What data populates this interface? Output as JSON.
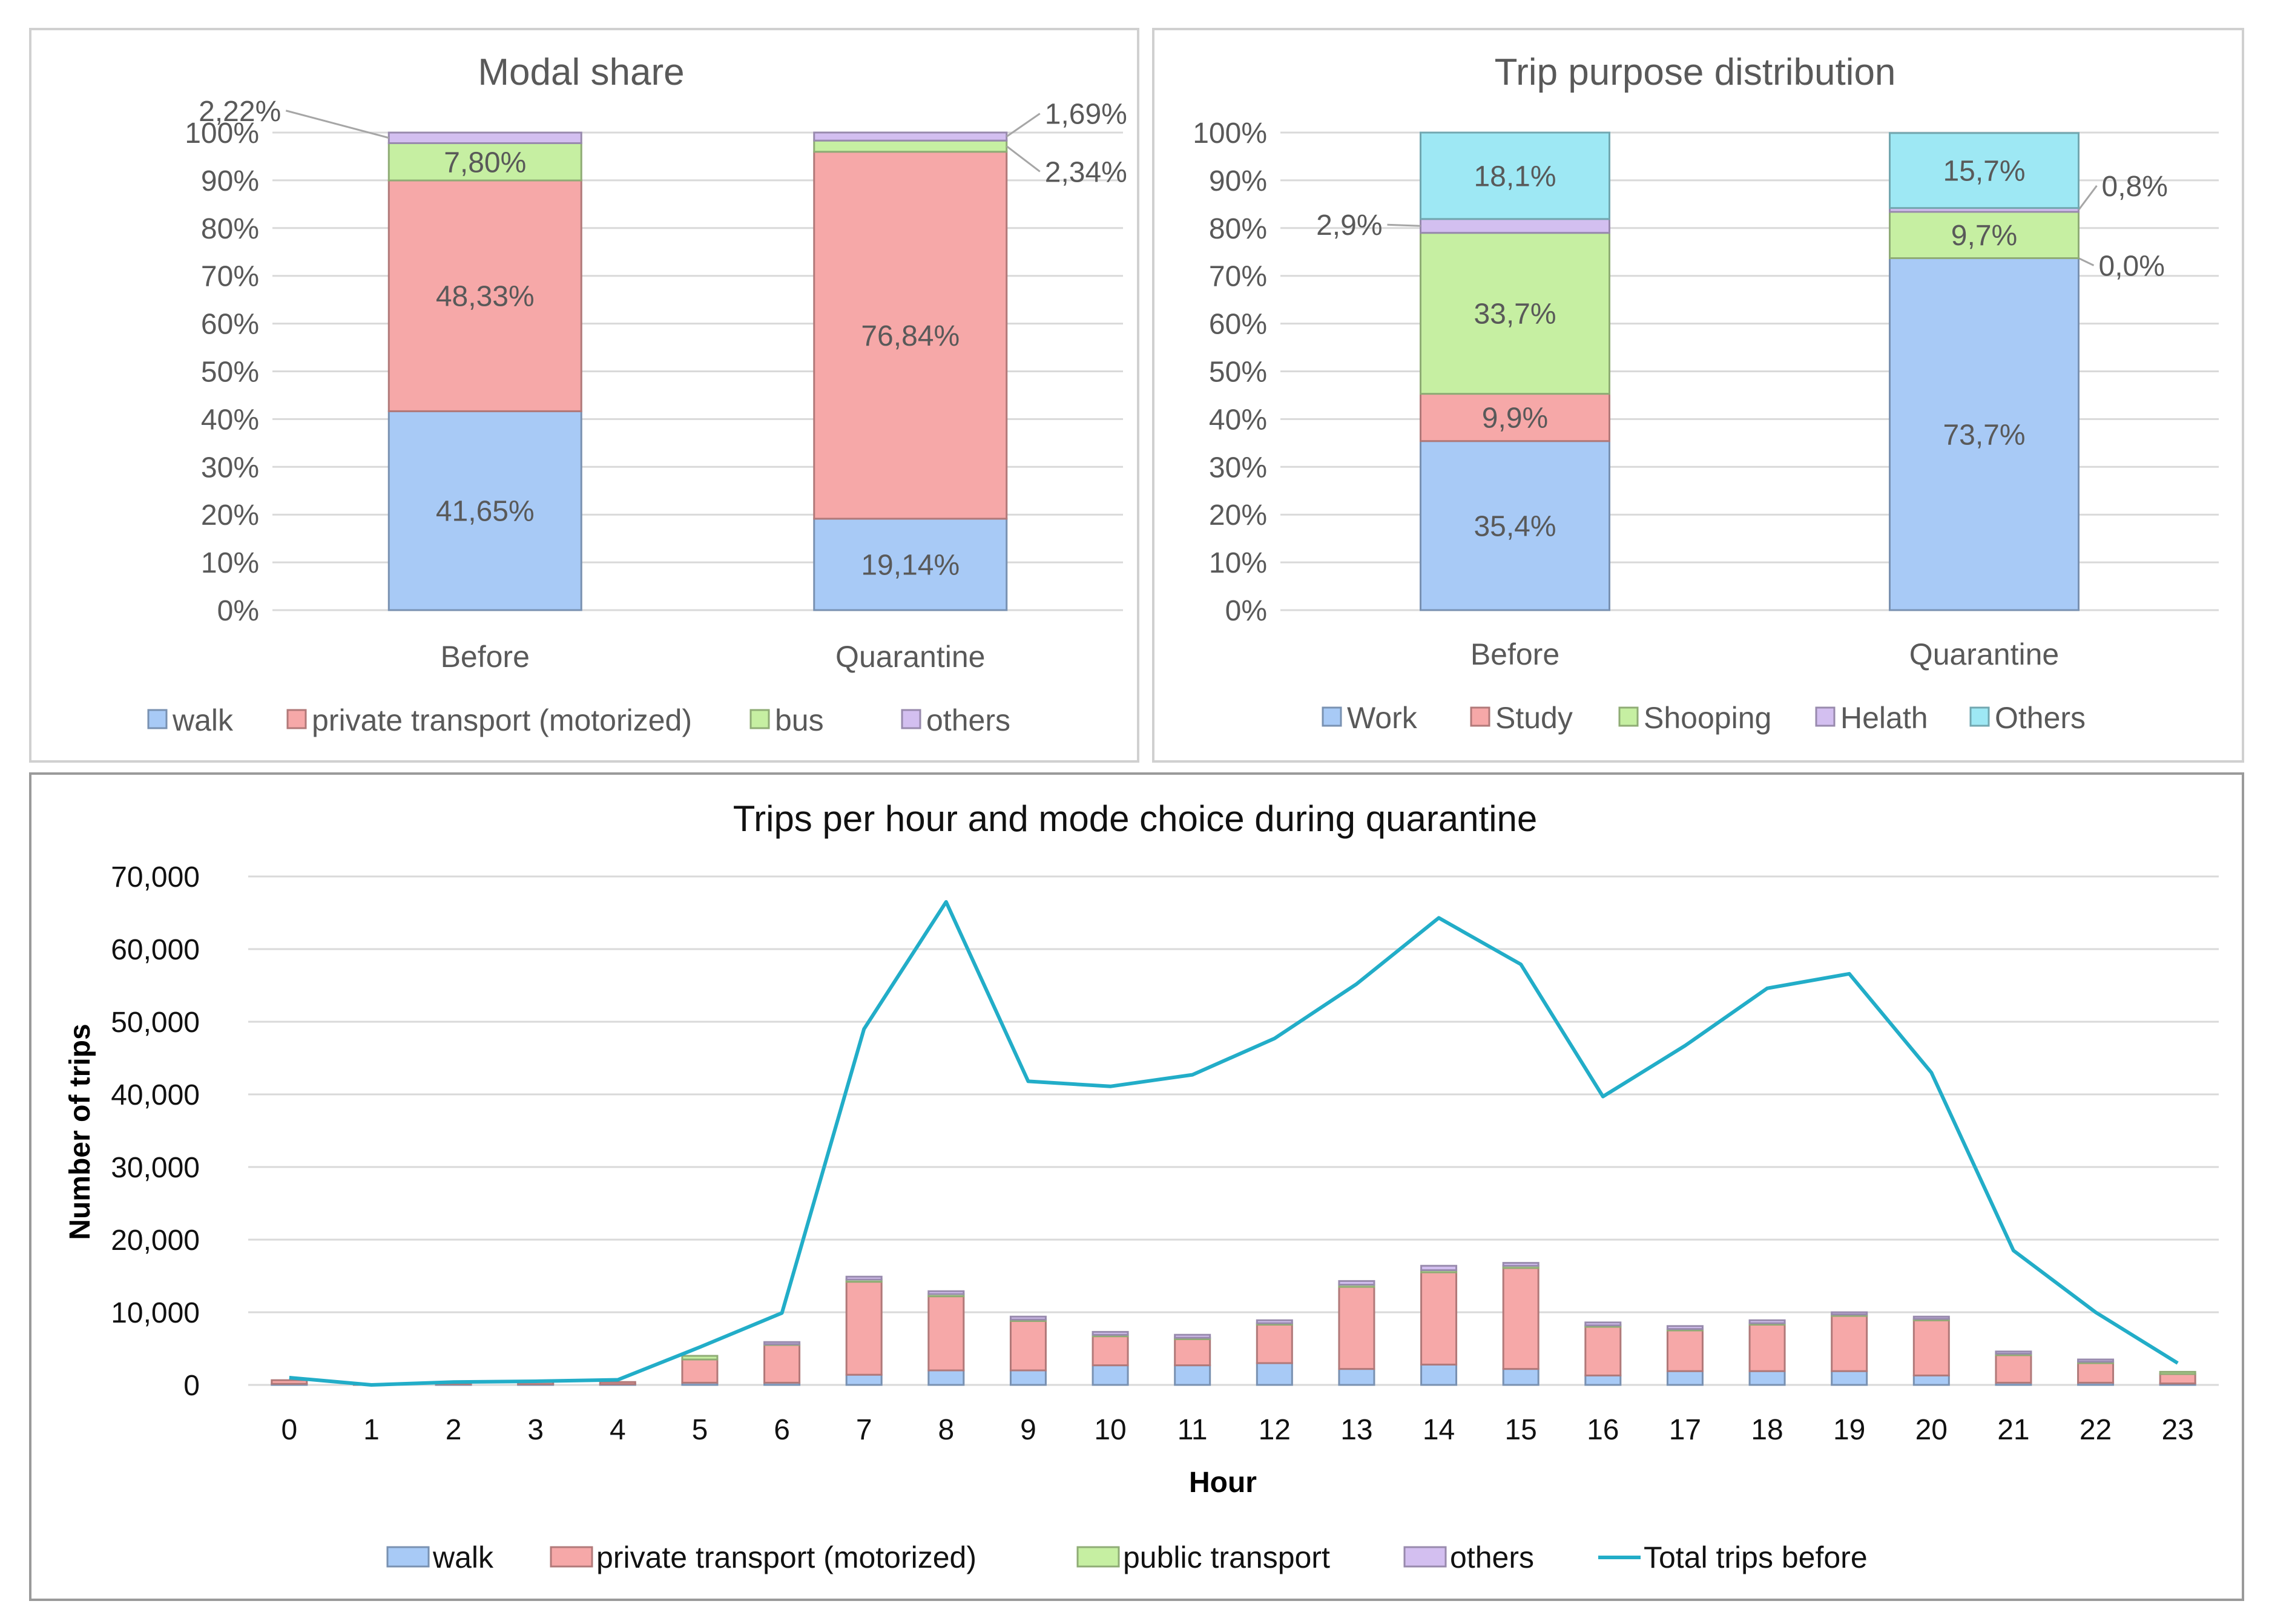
{
  "chart_data": [
    {
      "id": "modal",
      "type": "bar",
      "stacked": true,
      "title": "Modal share",
      "categories": [
        "Before",
        "Quarantine"
      ],
      "y_ticks": [
        "0%",
        "10%",
        "20%",
        "30%",
        "40%",
        "50%",
        "60%",
        "70%",
        "80%",
        "90%",
        "100%"
      ],
      "ylim": [
        0,
        100
      ],
      "series": [
        {
          "name": "walk",
          "color": "#a8caf6",
          "values": [
            41.65,
            19.14
          ],
          "labels": [
            "41,65%",
            "19,14%"
          ]
        },
        {
          "name": "private transport (motorized)",
          "color": "#f6a8a8",
          "values": [
            48.33,
            76.84
          ],
          "labels": [
            "48,33%",
            "76,84%"
          ]
        },
        {
          "name": "bus",
          "color": "#c6efa2",
          "values": [
            7.8,
            2.34
          ],
          "labels": [
            "7,80%",
            "2,34%"
          ]
        },
        {
          "name": "others",
          "color": "#d3bff0",
          "values": [
            2.22,
            1.69
          ],
          "labels": [
            "2,22%",
            "1,69%"
          ]
        }
      ]
    },
    {
      "id": "purpose",
      "type": "bar",
      "stacked": true,
      "title": "Trip purpose distribution",
      "categories": [
        "Before",
        "Quarantine"
      ],
      "y_ticks": [
        "0%",
        "10%",
        "20%",
        "30%",
        "40%",
        "50%",
        "60%",
        "70%",
        "80%",
        "90%",
        "100%"
      ],
      "ylim": [
        0,
        100
      ],
      "series": [
        {
          "name": "Work",
          "color": "#a8caf6",
          "values": [
            35.4,
            73.7
          ],
          "labels": [
            "35,4%",
            "73,7%"
          ]
        },
        {
          "name": "Study",
          "color": "#f6a8a8",
          "values": [
            9.9,
            0.0
          ],
          "labels": [
            "9,9%",
            "0,0%"
          ]
        },
        {
          "name": "Shooping",
          "color": "#c6efa2",
          "values": [
            33.7,
            9.7
          ],
          "labels": [
            "33,7%",
            "9,7%"
          ]
        },
        {
          "name": "Helath",
          "color": "#d3bff0",
          "values": [
            2.9,
            0.8
          ],
          "labels": [
            "2,9%",
            "0,8%"
          ]
        },
        {
          "name": "Others",
          "color": "#9ee8f4",
          "values": [
            18.1,
            15.7
          ],
          "labels": [
            "18,1%",
            "15,7%"
          ]
        }
      ]
    },
    {
      "id": "hourly",
      "type": "bar",
      "stacked": true,
      "title": "Trips per hour and mode choice during quarantine",
      "xlabel": "Hour",
      "ylabel": "Number of trips",
      "ylim": [
        0,
        70000
      ],
      "y_ticks": [
        "0",
        "10,000",
        "20,000",
        "30,000",
        "40,000",
        "50,000",
        "60,000",
        "70,000"
      ],
      "categories": [
        "0",
        "1",
        "2",
        "3",
        "4",
        "5",
        "6",
        "7",
        "8",
        "9",
        "10",
        "11",
        "12",
        "13",
        "14",
        "15",
        "16",
        "17",
        "18",
        "19",
        "20",
        "21",
        "22",
        "23"
      ],
      "series": [
        {
          "name": "walk",
          "color": "#a8caf6",
          "values": [
            150,
            0,
            100,
            100,
            100,
            300,
            300,
            1400,
            2000,
            2000,
            2700,
            2700,
            3000,
            2200,
            2800,
            2200,
            1300,
            1900,
            1900,
            1900,
            1300,
            300,
            300,
            200
          ]
        },
        {
          "name": "private transport  (motorized)",
          "color": "#f6a8a8",
          "values": [
            500,
            100,
            300,
            300,
            300,
            3200,
            5200,
            12800,
            10200,
            6800,
            4000,
            3600,
            5300,
            11300,
            12700,
            13900,
            6700,
            5600,
            6400,
            7600,
            7600,
            3800,
            2700,
            1300
          ]
        },
        {
          "name": "public transport",
          "color": "#c6efa2",
          "values": [
            0,
            0,
            0,
            0,
            0,
            500,
            100,
            300,
            300,
            200,
            200,
            200,
            200,
            300,
            300,
            300,
            200,
            200,
            200,
            200,
            200,
            200,
            200,
            300
          ]
        },
        {
          "name": "others",
          "color": "#d3bff0",
          "values": [
            0,
            0,
            0,
            0,
            0,
            0,
            300,
            400,
            400,
            400,
            400,
            400,
            400,
            500,
            600,
            400,
            400,
            400,
            400,
            300,
            300,
            300,
            300,
            0
          ]
        },
        {
          "name": "Total trips before",
          "kind": "line",
          "color": "#22adc8",
          "values": [
            1000,
            0,
            400,
            500,
            700,
            5200,
            9900,
            49000,
            66500,
            41800,
            41100,
            42700,
            47700,
            55200,
            64300,
            57900,
            39700,
            46700,
            54600,
            56600,
            43000,
            18500,
            10000,
            3000
          ]
        }
      ]
    }
  ]
}
